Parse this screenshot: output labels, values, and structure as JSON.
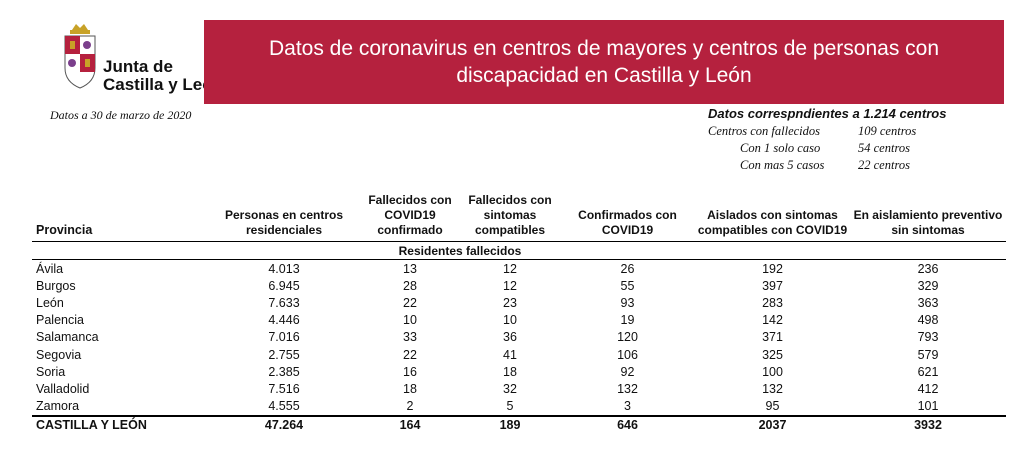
{
  "logo": {
    "line1": "Junta de",
    "line2": "Castilla y León"
  },
  "header": {
    "title": "Datos de coronavirus en centros de mayores y centros de personas con discapacidad en Castilla y León"
  },
  "date": "Datos a 30 de marzo de 2020",
  "info": {
    "title": "Datos correspndientes a 1.214 centros",
    "rows": [
      {
        "label": "Centros con fallecidos",
        "value": "109 centros"
      },
      {
        "label": "Con 1 solo caso",
        "value": "54 centros"
      },
      {
        "label": "Con mas 5 casos",
        "value": "22 centros"
      }
    ]
  },
  "table": {
    "headers": [
      "Provincia",
      "Personas en centros residenciales",
      "Fallecidos con COVID19 confirmado",
      "Fallecidos con sintomas compatibles",
      "Confirmados con COVID19",
      "Aislados con sintomas compatibles con COVID19",
      "En aislamiento preventivo sin sintomas"
    ],
    "subheader": "Residentes fallecidos",
    "rows": [
      [
        "Ávila",
        "4.013",
        "13",
        "12",
        "26",
        "192",
        "236"
      ],
      [
        "Burgos",
        "6.945",
        "28",
        "12",
        "55",
        "397",
        "329"
      ],
      [
        "León",
        "7.633",
        "22",
        "23",
        "93",
        "283",
        "363"
      ],
      [
        "Palencia",
        "4.446",
        "10",
        "10",
        "19",
        "142",
        "498"
      ],
      [
        "Salamanca",
        "7.016",
        "33",
        "36",
        "120",
        "371",
        "793"
      ],
      [
        "Segovia",
        "2.755",
        "22",
        "41",
        "106",
        "325",
        "579"
      ],
      [
        "Soria",
        "2.385",
        "16",
        "18",
        "92",
        "100",
        "621"
      ],
      [
        "Valladolid",
        "7.516",
        "18",
        "32",
        "132",
        "132",
        "412"
      ],
      [
        "Zamora",
        "4.555",
        "2",
        "5",
        "3",
        "95",
        "101"
      ]
    ],
    "total": [
      "CASTILLA Y LEÓN",
      "47.264",
      "164",
      "189",
      "646",
      "2037",
      "3932"
    ]
  }
}
